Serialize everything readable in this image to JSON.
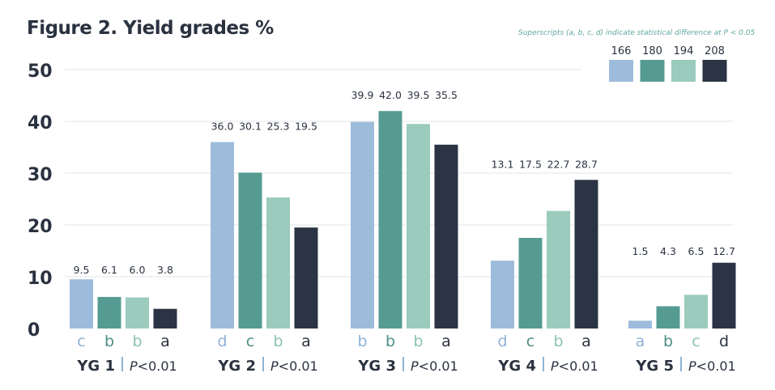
{
  "chart_data": {
    "type": "bar",
    "title": "Figure 2. Yield grades %",
    "note": "Superscripts (a, b, c, d) indicate statistical difference at P < 0.05",
    "ylim": [
      0,
      50
    ],
    "yticks": [
      "0",
      "10",
      "20",
      "30",
      "40",
      "50"
    ],
    "grid": true,
    "legend_position": "top-right",
    "colors": [
      "#9dbcdc",
      "#569b92",
      "#9acbbd",
      "#2b3444"
    ],
    "series": [
      {
        "name": "166",
        "values": [
          9.5,
          36.0,
          39.9,
          13.1,
          1.5
        ]
      },
      {
        "name": "180",
        "values": [
          6.1,
          30.1,
          42.0,
          17.5,
          4.3
        ]
      },
      {
        "name": "194",
        "values": [
          6.0,
          25.3,
          39.5,
          22.7,
          6.5
        ]
      },
      {
        "name": "208",
        "values": [
          3.8,
          19.5,
          35.5,
          28.7,
          12.7
        ]
      }
    ],
    "data_labels": [
      [
        "9.5",
        "6.1",
        "6.0",
        "3.8"
      ],
      [
        "36.0",
        "30.1",
        "25.3",
        "19.5"
      ],
      [
        "39.9",
        "42.0",
        "39.5",
        "35.5"
      ],
      [
        "13.1",
        "17.5",
        "22.7",
        "28.7"
      ],
      [
        "1.5",
        "4.3",
        "6.5",
        "12.7"
      ]
    ],
    "superscripts": [
      [
        "c",
        "b",
        "b",
        "a"
      ],
      [
        "d",
        "c",
        "b",
        "a"
      ],
      [
        "b",
        "b",
        "b",
        "a"
      ],
      [
        "d",
        "c",
        "b",
        "a"
      ],
      [
        "a",
        "b",
        "c",
        "d"
      ]
    ],
    "categories": [
      {
        "name": "YG 1",
        "p_prefix": "P",
        "p_suffix": "<0.01"
      },
      {
        "name": "YG 2",
        "p_prefix": "P",
        "p_suffix": "<0.01"
      },
      {
        "name": "YG 3",
        "p_prefix": "P",
        "p_suffix": "<0.01"
      },
      {
        "name": "YG 4",
        "p_prefix": "P",
        "p_suffix": "<0.01"
      },
      {
        "name": "YG 5",
        "p_prefix": "P",
        "p_suffix": "<0.01"
      }
    ]
  }
}
